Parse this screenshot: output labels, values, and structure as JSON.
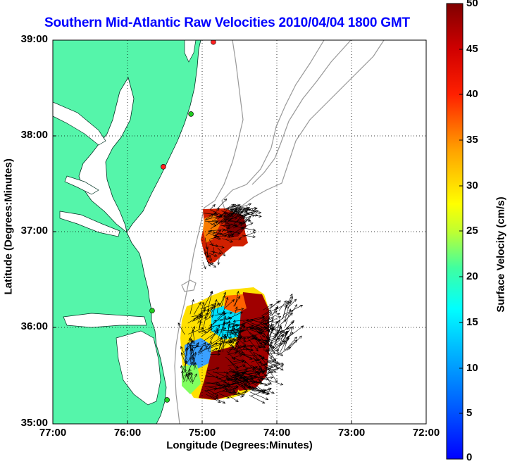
{
  "title": "Southern Mid-Atlantic Raw Velocities 2010/04/04 1800 GMT",
  "xlabel": "Longitude (Degrees:Minutes)",
  "ylabel": "Latitude (Degrees:Minutes)",
  "xticks": [
    "77:00",
    "76:00",
    "75:00",
    "74:00",
    "73:00",
    "72:00"
  ],
  "yticks": [
    "39:00",
    "38:00",
    "37:00",
    "36:00",
    "35:00"
  ],
  "colorbar": {
    "label": "Surface Velocity (cm/s)",
    "ticks": [
      "50",
      "45",
      "40",
      "35",
      "30",
      "25",
      "20",
      "15",
      "10",
      "5",
      "0"
    ],
    "range": [
      0,
      50
    ],
    "units": "cm/s"
  },
  "map": {
    "lon_range": [
      -77,
      -72
    ],
    "lat_range": [
      35,
      39
    ],
    "land_color": "#55f5aa",
    "grid": "dotted",
    "stations": [
      {
        "lon": -74.85,
        "lat": 38.98,
        "status": "red"
      },
      {
        "lon": -75.15,
        "lat": 38.23,
        "status": "green"
      },
      {
        "lon": -75.52,
        "lat": 37.68,
        "status": "red"
      },
      {
        "lon": -75.67,
        "lat": 36.18,
        "status": "green"
      },
      {
        "lon": -75.47,
        "lat": 35.25,
        "status": "green"
      }
    ]
  },
  "colors": {
    "title": "#0000ff",
    "station_red": "#ff2020",
    "station_green": "#22cc22"
  }
}
